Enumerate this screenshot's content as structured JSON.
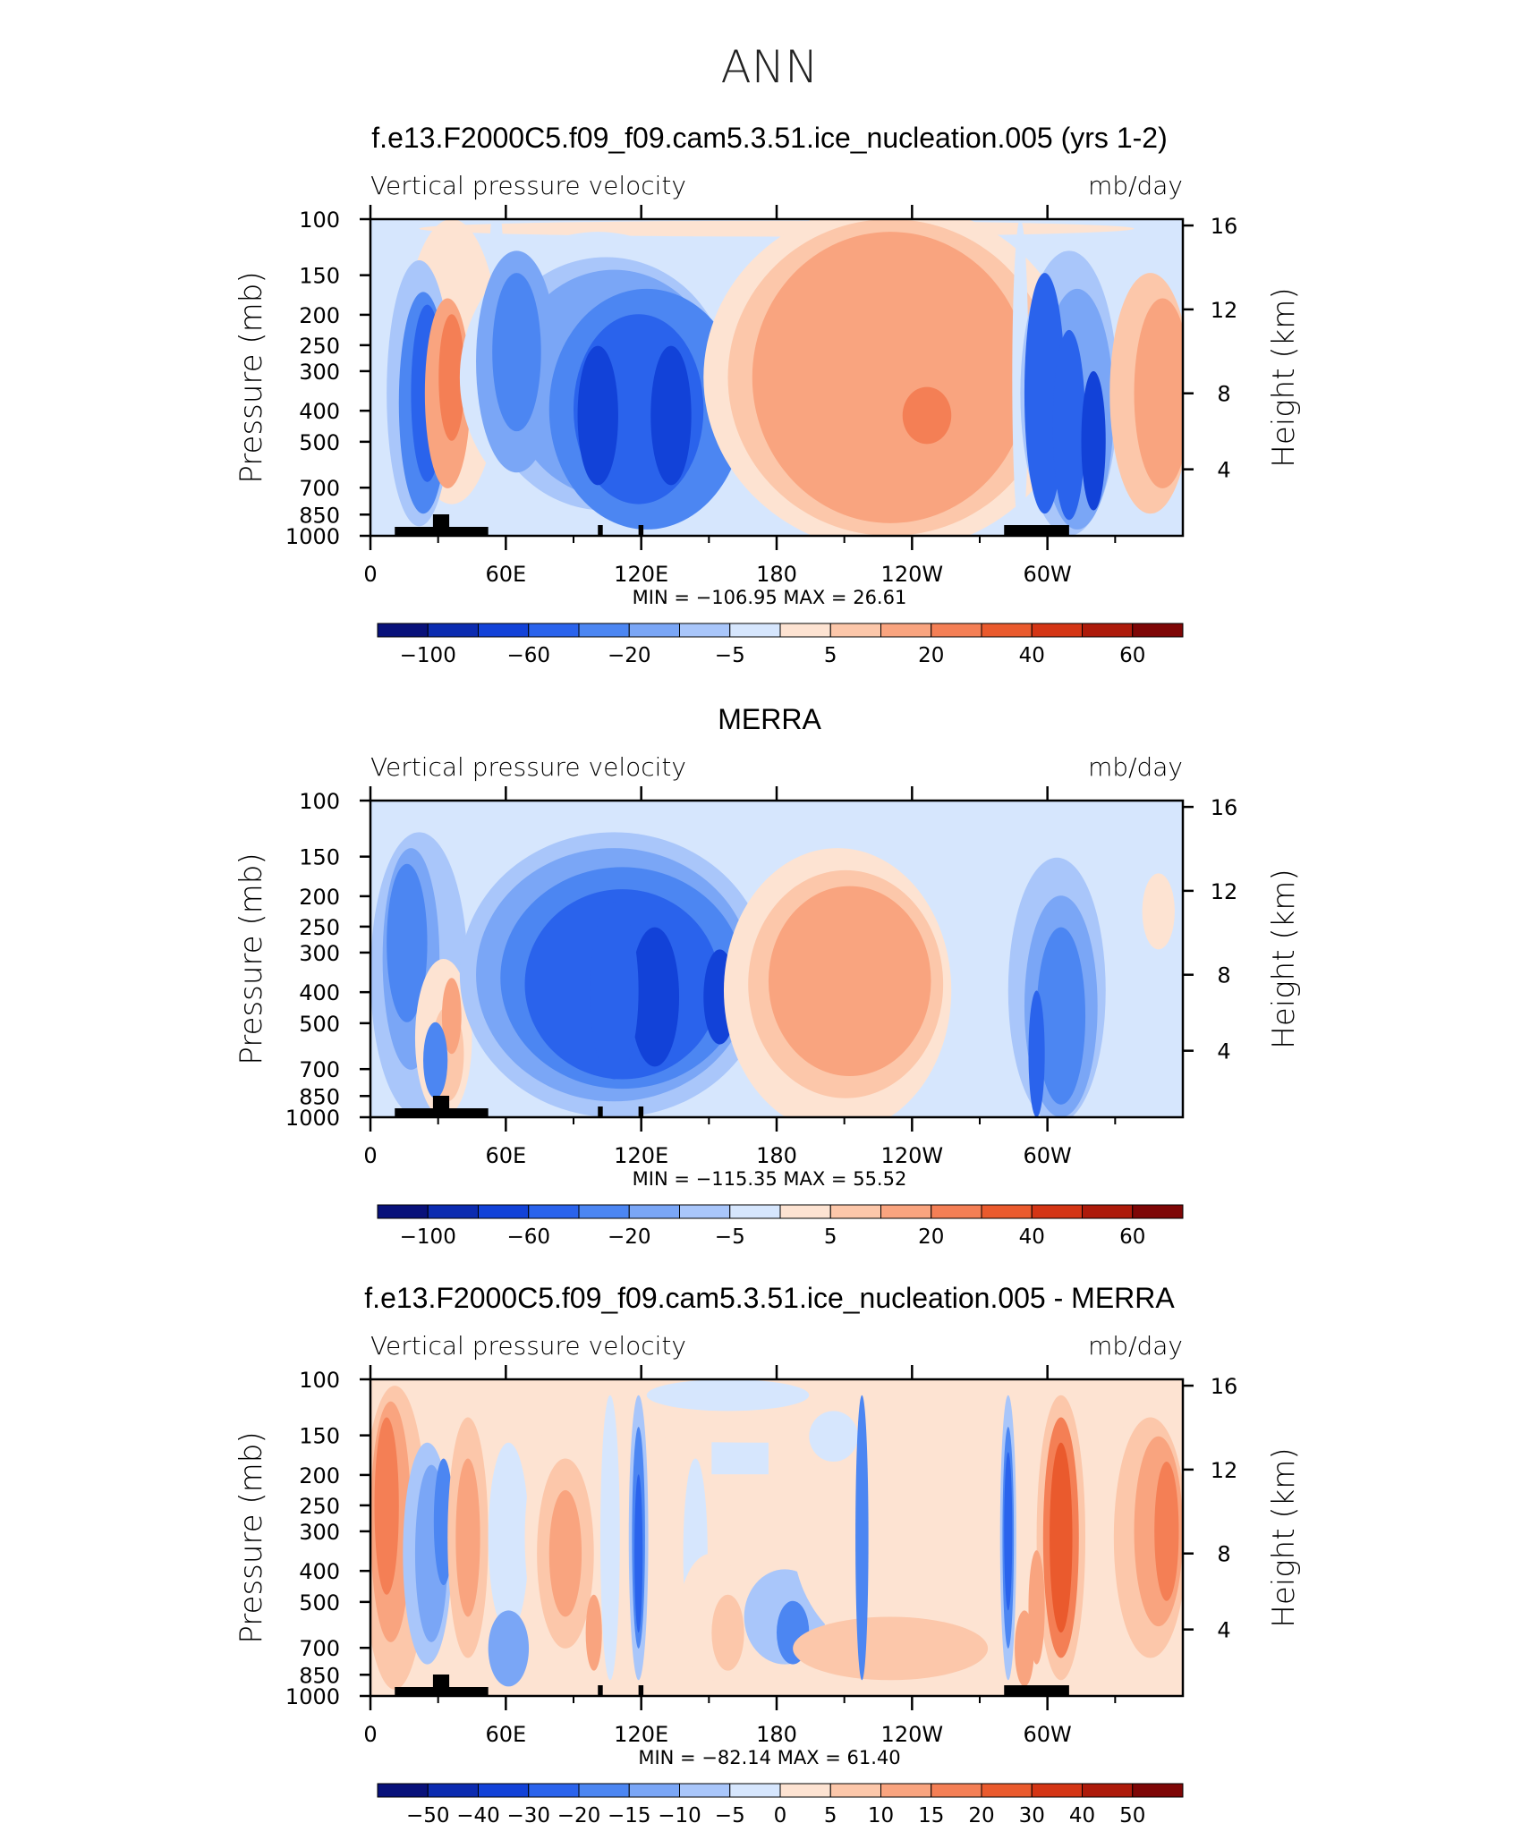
{
  "figure": {
    "main_title": "ANN"
  },
  "colors": {
    "blue_ramp": [
      "#08117a",
      "#0b2bb0",
      "#1242d8",
      "#2a63ec",
      "#4c86f2",
      "#7aa6f6",
      "#a9c6fa",
      "#d6e6fd"
    ],
    "red_ramp": [
      "#fde3d2",
      "#fcc7aa",
      "#f9a47f",
      "#f47f55",
      "#ea5a2d",
      "#d43515",
      "#ad1a0a",
      "#7e0606"
    ],
    "topo": "#000000",
    "white_band": "#ffffff"
  },
  "chart_data": [
    {
      "type": "contour",
      "title": "f.e13.F2000C5.f09_f09.cam5.3.51.ice_nucleation.005 (yrs 1-2)",
      "left_label": "Vertical pressure velocity",
      "right_label": "mb/day",
      "ylabel": "Pressure (mb)",
      "y2label": "Height (km)",
      "xticklabels": [
        "0",
        "60E",
        "120E",
        "180",
        "120W",
        "60W"
      ],
      "yticklabels": [
        "100",
        "150",
        "200",
        "250",
        "300",
        "400",
        "500",
        "700",
        "850",
        "1000"
      ],
      "y2ticklabels": [
        "16",
        "12",
        "8",
        "4"
      ],
      "stats_text": "MIN = −106.95   MAX =   26.61",
      "colorbar_labels": [
        "−100",
        "−60",
        "−20",
        "−5",
        "5",
        "20",
        "40",
        "60"
      ]
    },
    {
      "type": "contour",
      "title": "MERRA",
      "left_label": "Vertical pressure velocity",
      "right_label": "mb/day",
      "ylabel": "Pressure (mb)",
      "y2label": "Height (km)",
      "xticklabels": [
        "0",
        "60E",
        "120E",
        "180",
        "120W",
        "60W"
      ],
      "yticklabels": [
        "100",
        "150",
        "200",
        "250",
        "300",
        "400",
        "500",
        "700",
        "850",
        "1000"
      ],
      "y2ticklabels": [
        "16",
        "12",
        "8",
        "4"
      ],
      "stats_text": "MIN = −115.35   MAX =   55.52",
      "colorbar_labels": [
        "−100",
        "−60",
        "−20",
        "−5",
        "5",
        "20",
        "40",
        "60"
      ]
    },
    {
      "type": "contour",
      "title": "f.e13.F2000C5.f09_f09.cam5.3.51.ice_nucleation.005 - MERRA",
      "left_label": "Vertical pressure velocity",
      "right_label": "mb/day",
      "ylabel": "Pressure (mb)",
      "y2label": "Height (km)",
      "xticklabels": [
        "0",
        "60E",
        "120E",
        "180",
        "120W",
        "60W"
      ],
      "yticklabels": [
        "100",
        "150",
        "200",
        "250",
        "300",
        "400",
        "500",
        "700",
        "850",
        "1000"
      ],
      "y2ticklabels": [
        "16",
        "12",
        "8",
        "4"
      ],
      "stats_text": "MIN = −82.14   MAX =   61.40",
      "colorbar_labels": [
        "−50",
        "−40",
        "−30",
        "−20",
        "−15",
        "−10",
        "−5",
        "0",
        "5",
        "10",
        "15",
        "20",
        "30",
        "40",
        "50"
      ]
    }
  ]
}
